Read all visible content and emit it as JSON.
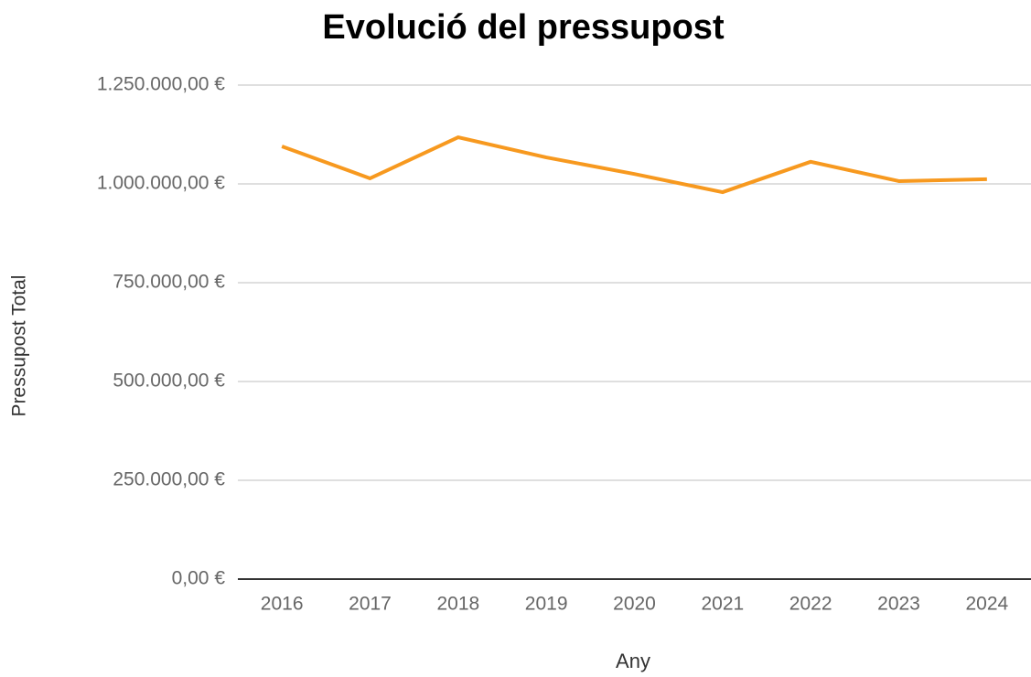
{
  "chart_data": {
    "type": "line",
    "title": "Evolució del pressupost",
    "x_label": "Any",
    "y_label": "Pressupost Total",
    "categories": [
      "2016",
      "2017",
      "2018",
      "2019",
      "2020",
      "2021",
      "2022",
      "2023",
      "2024"
    ],
    "series": [
      {
        "name": "Pressupost Total",
        "color": "#f7991f",
        "values": [
          1095000,
          1014000,
          1118000,
          1067000,
          1025000,
          979000,
          1056000,
          1007000,
          1012000
        ]
      }
    ],
    "ylim": [
      0,
      1250000
    ],
    "yticks": [
      {
        "value": 0,
        "label": "0,00 €"
      },
      {
        "value": 250000,
        "label": "250.000,00 €"
      },
      {
        "value": 500000,
        "label": "500.000,00 €"
      },
      {
        "value": 750000,
        "label": "750.000,00 €"
      },
      {
        "value": 1000000,
        "label": "1.000.000,00 €"
      },
      {
        "value": 1250000,
        "label": "1.250.000,00 €"
      }
    ],
    "grid": true
  }
}
